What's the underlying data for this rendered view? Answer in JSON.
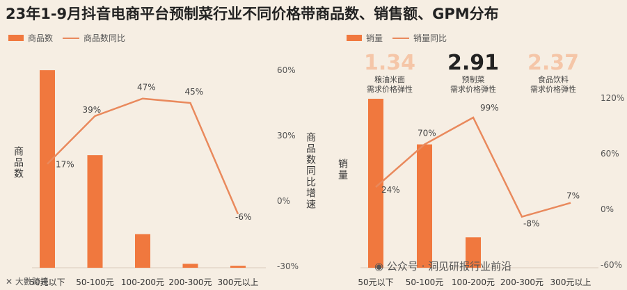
{
  "title": "23年1-9月抖音电商平台预制菜行业不同价格带商品数、销售额、GPM分布",
  "colors": {
    "bar": "#f0783e",
    "line": "#e9895c",
    "background": "#f6eee3"
  },
  "left_chart": {
    "legend": {
      "bar": "商品数",
      "line": "商品数同比"
    },
    "ylabel_left": "商品数",
    "ylabel_right": "商品数同比增速",
    "right_ticks": [
      "60%",
      "30%",
      "0%",
      "-30%"
    ]
  },
  "right_chart": {
    "legend": {
      "bar": "销量",
      "line": "销量同比"
    },
    "ylabel_left": "销量",
    "right_ticks": [
      "120%",
      "60%",
      "0%",
      "-60%"
    ],
    "elasticities": [
      {
        "value": "1.34",
        "label_1": "粮油米面",
        "label_2": "需求价格弹性"
      },
      {
        "value": "2.91",
        "label_1": "预制菜",
        "label_2": "需求价格弹性"
      },
      {
        "value": "2.37",
        "label_1": "食品饮料",
        "label_2": "需求价格弹性"
      }
    ]
  },
  "footer": {
    "left_text": "大數跨境",
    "right_text": "公众号 · 洞见研报行业前沿"
  },
  "chart_data": [
    {
      "type": "bar",
      "categories": [
        "50元以下",
        "50-100元",
        "100-200元",
        "200-300元",
        "300元以上"
      ],
      "series": [
        {
          "name": "商品数",
          "type": "bar",
          "values": [
            100,
            57,
            17,
            2,
            1
          ]
        },
        {
          "name": "商品数同比",
          "type": "line",
          "values": [
            17,
            39,
            47,
            45,
            -6
          ],
          "labels": [
            "17%",
            "39%",
            "47%",
            "45%",
            "-6%"
          ]
        }
      ],
      "ylabel": "商品数",
      "y2label": "商品数同比增速",
      "y2lim": [
        -30,
        60
      ]
    },
    {
      "type": "bar",
      "categories": [
        "50元以下",
        "50-100元",
        "100-200元",
        "200-300元",
        "300元以上"
      ],
      "series": [
        {
          "name": "销量",
          "type": "bar",
          "values": [
            100,
            73,
            18,
            0,
            0
          ]
        },
        {
          "name": "销量同比",
          "type": "line",
          "values": [
            24,
            70,
            99,
            -8,
            7
          ],
          "labels": [
            "24%",
            "70%",
            "99%",
            "-8%",
            "7%"
          ]
        }
      ],
      "ylabel": "销量",
      "y2lim": [
        -60,
        120
      ]
    }
  ]
}
